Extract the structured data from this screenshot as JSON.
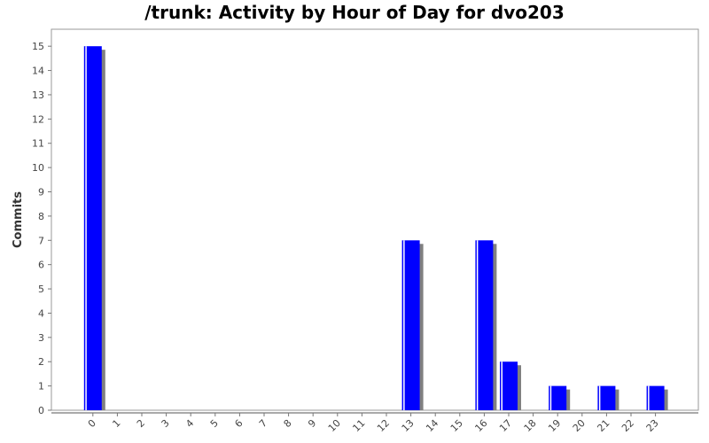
{
  "chart_data": {
    "type": "bar",
    "title": "/trunk: Activity by Hour of Day for dvo203",
    "xlabel": "",
    "ylabel": "Commits",
    "categories": [
      "0",
      "1",
      "2",
      "3",
      "4",
      "5",
      "6",
      "7",
      "8",
      "9",
      "10",
      "11",
      "12",
      "13",
      "14",
      "15",
      "16",
      "17",
      "18",
      "19",
      "20",
      "21",
      "22",
      "23"
    ],
    "values": [
      15,
      0,
      0,
      0,
      0,
      0,
      0,
      0,
      0,
      0,
      0,
      0,
      0,
      7,
      0,
      0,
      7,
      2,
      0,
      1,
      0,
      1,
      0,
      1
    ],
    "ylim": [
      0,
      15.7
    ],
    "yticks": [
      0,
      1,
      2,
      3,
      4,
      5,
      6,
      7,
      8,
      9,
      10,
      11,
      12,
      13,
      14,
      15
    ],
    "bar_color": "#0000ff",
    "shadow_color": "#808080",
    "grid": false,
    "legend": "none"
  }
}
